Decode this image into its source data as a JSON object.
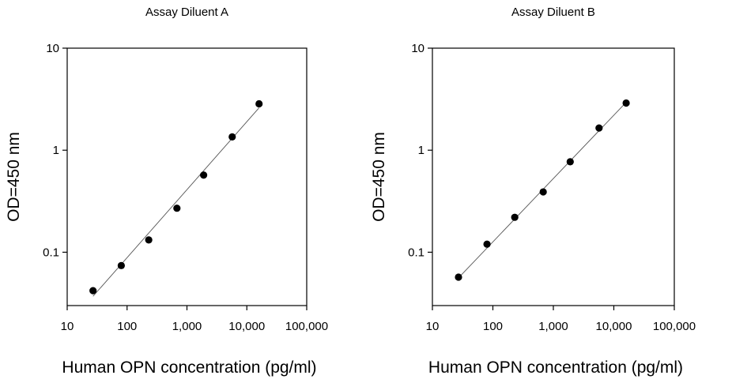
{
  "chart_data": [
    {
      "type": "scatter",
      "title": "Assay Diluent A",
      "xlabel": "Human OPN concentration (pg/ml)",
      "ylabel": "OD=450 nm",
      "xscale": "log",
      "yscale": "log",
      "xlim": [
        10,
        100000
      ],
      "ylim": [
        0.03,
        10
      ],
      "xticks": [
        10,
        100,
        1000,
        10000,
        100000
      ],
      "xtick_labels": [
        "10",
        "100",
        "1,000",
        "10,000",
        "100,000"
      ],
      "yticks": [
        0.1,
        1,
        10
      ],
      "ytick_labels": [
        "0.1",
        "1",
        "10"
      ],
      "grid": false,
      "legend": "none",
      "series": [
        {
          "x": [
            27,
            80,
            230,
            680,
            1900,
            5700,
            16000
          ],
          "y": [
            0.042,
            0.074,
            0.132,
            0.27,
            0.57,
            1.35,
            2.85
          ]
        }
      ],
      "fit_line": {
        "x": [
          27,
          16000
        ],
        "y": [
          0.037,
          2.6
        ]
      }
    },
    {
      "type": "scatter",
      "title": "Assay Diluent B",
      "xlabel": "Human OPN concentration (pg/ml)",
      "ylabel": "OD=450 nm",
      "xscale": "log",
      "yscale": "log",
      "xlim": [
        10,
        100000
      ],
      "ylim": [
        0.03,
        10
      ],
      "xticks": [
        10,
        100,
        1000,
        10000,
        100000
      ],
      "xtick_labels": [
        "10",
        "100",
        "1,000",
        "10,000",
        "100,000"
      ],
      "yticks": [
        0.1,
        1,
        10
      ],
      "ytick_labels": [
        "0.1",
        "1",
        "10"
      ],
      "grid": false,
      "legend": "none",
      "series": [
        {
          "x": [
            27,
            80,
            230,
            680,
            1900,
            5700,
            16000
          ],
          "y": [
            0.057,
            0.12,
            0.22,
            0.39,
            0.77,
            1.65,
            2.9
          ]
        }
      ],
      "fit_line": {
        "x": [
          27,
          16000
        ],
        "y": [
          0.056,
          2.95
        ]
      }
    }
  ]
}
